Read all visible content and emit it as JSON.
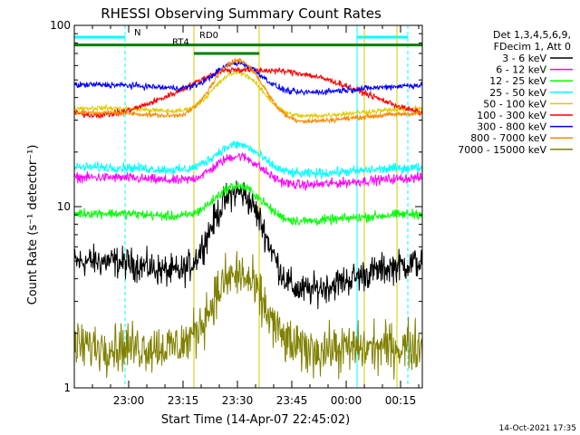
{
  "chart_data": {
    "type": "line",
    "title": "RHESSI Observing Summary Count Rates",
    "xlabel": "Start Time (14-Apr-07 22:45:02)",
    "ylabel": "Count Rate (s⁻¹ detector⁻¹)",
    "yscale": "log",
    "ylim": [
      1,
      100
    ],
    "xlim_minutes": [
      0,
      96
    ],
    "y_ticks": [
      {
        "value": 1,
        "label": "1"
      },
      {
        "value": 10,
        "label": "10"
      },
      {
        "value": 100,
        "label": "100"
      }
    ],
    "x_ticks": [
      {
        "minute": 15,
        "label": "23:00"
      },
      {
        "minute": 30,
        "label": "23:15"
      },
      {
        "minute": 45,
        "label": "23:30"
      },
      {
        "minute": 60,
        "label": "23:45"
      },
      {
        "minute": 75,
        "label": "00:00"
      },
      {
        "minute": 90,
        "label": "00:15"
      }
    ],
    "legend_header": [
      "Det 1,3,4,5,6,9,",
      "FDecim 1, Att 0"
    ],
    "legend_position": "top-right outside",
    "series": [
      {
        "name": "3 - 6 keV",
        "color": "#000000",
        "night": 5.0,
        "day": 3.2,
        "peak": 12,
        "noise": 0.13
      },
      {
        "name": "6 - 12 keV",
        "color": "#ff00ff",
        "night": 14.5,
        "day": 13.0,
        "peak": 19,
        "noise": 0.04
      },
      {
        "name": "12 - 25 keV",
        "color": "#00ff00",
        "night": 9.2,
        "day": 8.2,
        "peak": 13,
        "noise": 0.04
      },
      {
        "name": "25 - 50 keV",
        "color": "#00ffff",
        "night": 16.5,
        "day": 15.0,
        "peak": 22,
        "noise": 0.04
      },
      {
        "name": "50 - 100 keV",
        "color": "#ddcc00",
        "night": 35,
        "day": 31,
        "peak": 55,
        "noise": 0.02
      },
      {
        "name": "100 - 300 keV",
        "color": "#ff0000",
        "night": 32,
        "day": 56,
        "peak": 57,
        "noise": 0.025
      },
      {
        "name": "300 - 800 keV",
        "color": "#0000ff",
        "night": 47,
        "day": 42,
        "peak": 62,
        "noise": 0.025
      },
      {
        "name": "800 - 7000 keV",
        "color": "#ff8800",
        "night": 33,
        "day": 29,
        "peak": 64,
        "noise": 0.02
      },
      {
        "name": "7000 - 15000 keV",
        "color": "#808000",
        "night": 1.7,
        "day": 1.6,
        "peak": 4.2,
        "noise": 0.2
      }
    ],
    "annotations": [
      {
        "text": "N",
        "minute": 16.5,
        "value": 88,
        "color": "#00ffff"
      },
      {
        "text": "RD0",
        "minute": 34.5,
        "value": 85,
        "color": "#008000"
      },
      {
        "text": "RT4",
        "minute": 27,
        "value": 78,
        "color": "#008000"
      }
    ],
    "night_intervals": [
      [
        0,
        14
      ],
      [
        78,
        92
      ]
    ],
    "saa_intervals": [
      [
        33,
        51
      ],
      [
        80,
        89
      ]
    ],
    "grid": false
  },
  "footer": {
    "timestamp": "14-Oct-2021 17:35"
  }
}
